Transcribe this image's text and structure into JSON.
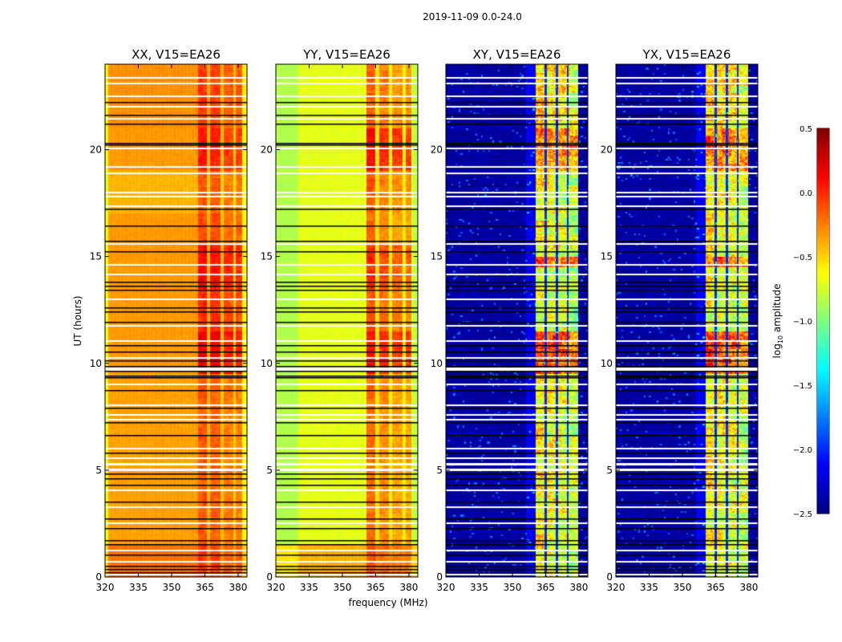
{
  "chart_data": {
    "type": "heatmap",
    "suptitle": "2019-11-09 0.0-24.0",
    "xlabel": "frequency (MHz)",
    "ylabel": "UT (hours)",
    "xlim": [
      320,
      384
    ],
    "ylim": [
      0,
      24
    ],
    "xticks": [
      320,
      335,
      350,
      365,
      380
    ],
    "yticks": [
      0,
      5,
      10,
      15,
      20
    ],
    "colorbar": {
      "label_prefix": "log",
      "label_sub": "10",
      "label_suffix": " amplitude",
      "colormap": "jet",
      "vmin": -2.5,
      "vmax": 0.5,
      "ticks": [
        "0.5",
        "0.0",
        "−0.5",
        "−1.0",
        "−1.5",
        "−2.0",
        "−2.5"
      ],
      "tick_values": [
        0.5,
        0.0,
        -0.5,
        -1.0,
        -1.5,
        -2.0,
        -2.5
      ]
    },
    "flagged_hours_black": [
      0.2,
      0.35,
      0.5,
      1.0,
      1.5,
      1.7,
      2.25,
      2.7,
      3.5,
      4.3,
      4.6,
      4.8,
      5.8,
      6.6,
      7.2,
      7.9,
      8.7,
      9.3,
      9.4,
      9.6,
      9.85,
      10.1,
      10.5,
      10.8,
      11.9,
      12.4,
      12.6,
      13.4,
      13.6,
      13.8,
      15.2,
      15.7,
      16.4,
      17.2,
      20.2,
      20.3,
      21.2,
      21.6,
      22.2
    ],
    "flagged_hours_white": [
      0.1,
      0.7,
      1.25,
      2.5,
      3.25,
      4.05,
      5.0,
      5.05,
      5.25,
      5.3,
      5.55,
      6.0,
      7.35,
      7.6,
      8.05,
      9.0,
      9.7,
      9.75,
      10.25,
      11.05,
      11.75,
      13.0,
      14.15,
      14.6,
      15.6,
      17.35,
      17.8,
      18.0,
      18.9,
      19.2,
      20.05,
      21.45,
      22.0,
      22.5,
      23.1,
      23.35
    ],
    "panels": [
      {
        "title": "XX, V15=EA26",
        "freq_profile": [
          [
            320,
            321.5,
            -0.65,
            0
          ],
          [
            321.5,
            362,
            -0.33,
            0
          ],
          [
            362,
            366,
            -0.08,
            1
          ],
          [
            366,
            367.5,
            -0.4,
            0
          ],
          [
            367.5,
            372,
            -0.12,
            1
          ],
          [
            372,
            373.5,
            -0.45,
            0
          ],
          [
            373.5,
            378,
            -0.2,
            1
          ],
          [
            378,
            379,
            -0.45,
            0
          ],
          [
            379,
            382,
            -0.2,
            1
          ],
          [
            382,
            384,
            -0.6,
            0
          ]
        ],
        "time_profile": [
          [
            0,
            1.5,
            0.12,
            0.05
          ],
          [
            1.5,
            9.5,
            -0.02,
            -0.05
          ],
          [
            9.5,
            11.5,
            0,
            0.25
          ],
          [
            11.5,
            13.5,
            0,
            0.1
          ],
          [
            13.5,
            15.5,
            0,
            0.2
          ],
          [
            15.5,
            17,
            0,
            0
          ],
          [
            17,
            19,
            -0.08,
            -0.05
          ],
          [
            19,
            21,
            0,
            0.15
          ],
          [
            21,
            24,
            0.03,
            0.05
          ]
        ],
        "noise": 0.07
      },
      {
        "title": "YY, V15=EA26",
        "freq_profile": [
          [
            320,
            330,
            -0.85,
            0
          ],
          [
            330,
            361,
            -0.7,
            0
          ],
          [
            361,
            365,
            -0.2,
            1
          ],
          [
            365,
            366.5,
            -0.55,
            0
          ],
          [
            366.5,
            371,
            -0.3,
            1
          ],
          [
            371,
            372.5,
            -0.6,
            0
          ],
          [
            372.5,
            377,
            -0.35,
            1
          ],
          [
            377,
            378.5,
            -0.6,
            0
          ],
          [
            378.5,
            381,
            -0.35,
            1
          ],
          [
            381,
            384,
            -0.8,
            0
          ]
        ],
        "time_profile": [
          [
            0,
            1.5,
            0.3,
            0.1
          ],
          [
            1.5,
            9.5,
            0,
            0
          ],
          [
            9.5,
            11.5,
            0,
            0.3
          ],
          [
            11.5,
            13.5,
            0,
            0.1
          ],
          [
            13.5,
            15.5,
            0,
            0.2
          ],
          [
            15.5,
            17,
            0,
            0
          ],
          [
            17,
            19,
            0,
            0.05
          ],
          [
            19,
            21,
            0,
            0.3
          ],
          [
            21,
            24,
            0,
            0.05
          ]
        ],
        "noise": 0.08
      },
      {
        "title": "XY, V15=EA26",
        "freq_profile": [
          [
            320,
            356,
            -2.4,
            0
          ],
          [
            356,
            360.5,
            -2.15,
            0
          ],
          [
            360.5,
            364.5,
            -0.6,
            1
          ],
          [
            364.5,
            365.5,
            -2.0,
            0
          ],
          [
            365.5,
            369.5,
            -0.65,
            1
          ],
          [
            369.5,
            370.5,
            -2.0,
            0
          ],
          [
            370.5,
            374.5,
            -0.7,
            1
          ],
          [
            374.5,
            375.5,
            -2.0,
            0
          ],
          [
            375.5,
            379.5,
            -0.8,
            1
          ],
          [
            379.5,
            384,
            -2.4,
            0
          ]
        ],
        "time_profile": [
          [
            0,
            9.5,
            0,
            0
          ],
          [
            9.5,
            11.5,
            0,
            0.55
          ],
          [
            11.5,
            14.5,
            0,
            -0.1
          ],
          [
            14.5,
            15,
            0,
            0.5
          ],
          [
            15,
            19,
            0,
            0
          ],
          [
            19,
            21,
            0,
            0.4
          ],
          [
            21,
            24,
            0,
            0.1
          ]
        ],
        "noise": 0.25
      },
      {
        "title": "YX, V15=EA26",
        "freq_profile": [
          [
            320,
            356,
            -2.4,
            0
          ],
          [
            356,
            360.5,
            -2.15,
            0
          ],
          [
            360.5,
            364.5,
            -0.6,
            1
          ],
          [
            364.5,
            365.5,
            -2.0,
            0
          ],
          [
            365.5,
            369.5,
            -0.65,
            1
          ],
          [
            369.5,
            370.5,
            -2.0,
            0
          ],
          [
            370.5,
            374.5,
            -0.7,
            1
          ],
          [
            374.5,
            375.5,
            -2.0,
            0
          ],
          [
            375.5,
            379.5,
            -0.8,
            1
          ],
          [
            379.5,
            384,
            -2.4,
            0
          ]
        ],
        "time_profile": [
          [
            0,
            9.5,
            0,
            0
          ],
          [
            9.5,
            11.5,
            0,
            0.55
          ],
          [
            11.5,
            14.5,
            0,
            -0.1
          ],
          [
            14.5,
            15,
            0,
            0.5
          ],
          [
            15,
            19,
            0,
            0
          ],
          [
            19,
            21,
            0,
            0.4
          ],
          [
            21,
            24,
            0,
            0.1
          ]
        ],
        "noise": 0.25
      }
    ]
  }
}
